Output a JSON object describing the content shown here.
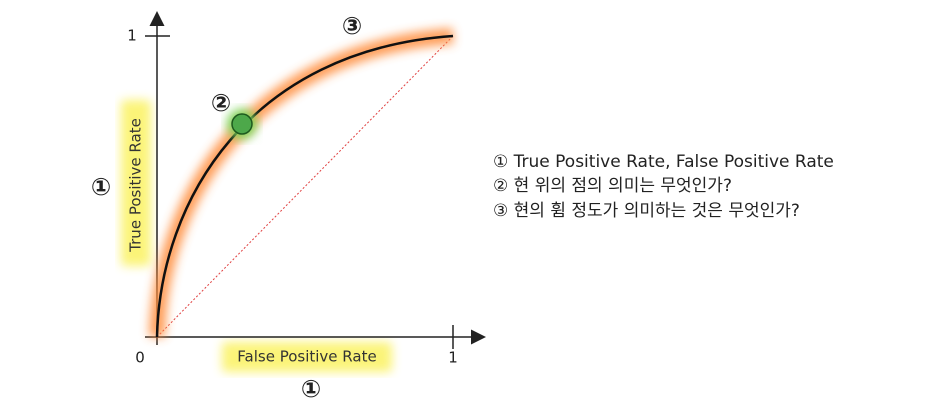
{
  "axes": {
    "origin_label": "0",
    "x_end_label": "1",
    "y_end_label": "1",
    "x_title": "False Positive Rate",
    "y_title": "True Positive Rate"
  },
  "markers": {
    "axes": "①",
    "axes_bottom": "①",
    "point": "②",
    "curve": "③"
  },
  "notes": [
    "① True Positive Rate, False Positive Rate",
    "② 현 위의 점의 의미는 무엇인가?",
    "③ 현의 휨 정도가 의미하는 것은 무엇인가?"
  ]
}
